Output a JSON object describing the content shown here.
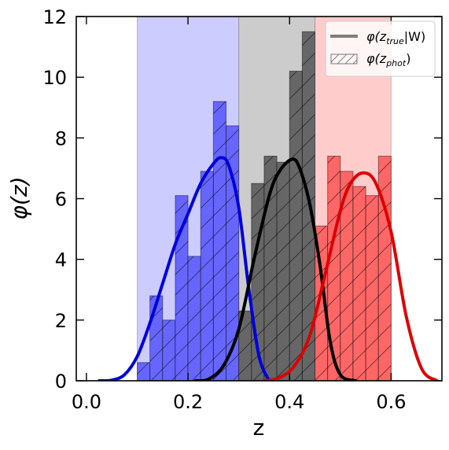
{
  "chart_data": {
    "type": "bar",
    "xlabel": "z",
    "ylabel": "φ(z)",
    "xlim": [
      -0.02,
      0.7
    ],
    "ylim": [
      0,
      12
    ],
    "xticks": [
      0.0,
      0.2,
      0.4,
      0.6
    ],
    "xtick_labels": [
      "0.0",
      "0.2",
      "0.4",
      "0.6"
    ],
    "yticks": [
      0,
      2,
      4,
      6,
      8,
      10,
      12
    ],
    "ytick_labels": [
      "0",
      "2",
      "4",
      "6",
      "8",
      "10",
      "12"
    ],
    "grid": false,
    "legend_position": "top-right",
    "legend": [
      {
        "kind": "line",
        "base": "φ(z",
        "sub": "true",
        "suffix": "|W)"
      },
      {
        "kind": "hatch",
        "base": "φ(z",
        "sub": "phot",
        "suffix": ")"
      }
    ],
    "bands": [
      {
        "from": 0.1,
        "to": 0.3,
        "color": "#ccccff"
      },
      {
        "from": 0.3,
        "to": 0.45,
        "color": "#cccccc"
      },
      {
        "from": 0.45,
        "to": 0.6,
        "color": "#ffcccc"
      }
    ],
    "histograms": [
      {
        "color": "#6666ff",
        "edges": [
          0.1,
          0.125,
          0.15,
          0.175,
          0.2,
          0.225,
          0.25,
          0.275,
          0.3
        ],
        "values": [
          0.6,
          2.8,
          2.0,
          6.1,
          4.1,
          6.9,
          9.2,
          8.4
        ]
      },
      {
        "color": "#666666",
        "edges": [
          0.3,
          0.325,
          0.35,
          0.375,
          0.4,
          0.425,
          0.45
        ],
        "values": [
          2.3,
          6.5,
          7.4,
          7.2,
          10.2,
          11.5
        ]
      },
      {
        "color": "#ff6666",
        "edges": [
          0.45,
          0.475,
          0.5,
          0.525,
          0.55,
          0.575,
          0.6
        ],
        "values": [
          5.1,
          7.4,
          6.9,
          6.4,
          6.1,
          7.4
        ]
      }
    ],
    "series": [
      {
        "color": "#0000dd",
        "x": [
          0.025,
          0.05,
          0.075,
          0.1,
          0.125,
          0.15,
          0.175,
          0.2,
          0.225,
          0.25,
          0.265,
          0.28,
          0.3,
          0.32,
          0.34,
          0.36
        ],
        "y": [
          0.0,
          0.02,
          0.2,
          0.8,
          1.9,
          3.2,
          4.5,
          5.5,
          6.5,
          7.15,
          7.35,
          7.1,
          5.7,
          3.0,
          0.8,
          0.0
        ]
      },
      {
        "color": "#000000",
        "x": [
          0.215,
          0.24,
          0.27,
          0.3,
          0.33,
          0.36,
          0.38,
          0.405,
          0.42,
          0.44,
          0.46,
          0.48,
          0.5,
          0.53
        ],
        "y": [
          0.0,
          0.05,
          0.5,
          1.7,
          4.0,
          6.1,
          6.9,
          7.3,
          7.0,
          5.8,
          3.8,
          1.3,
          0.2,
          0.0
        ]
      },
      {
        "color": "#dd0000",
        "x": [
          0.35,
          0.38,
          0.41,
          0.44,
          0.47,
          0.5,
          0.52,
          0.545,
          0.57,
          0.6,
          0.63,
          0.66,
          0.69
        ],
        "y": [
          0.0,
          0.1,
          0.5,
          1.5,
          3.5,
          5.6,
          6.5,
          6.85,
          6.5,
          4.9,
          2.1,
          0.4,
          0.0
        ]
      }
    ]
  }
}
